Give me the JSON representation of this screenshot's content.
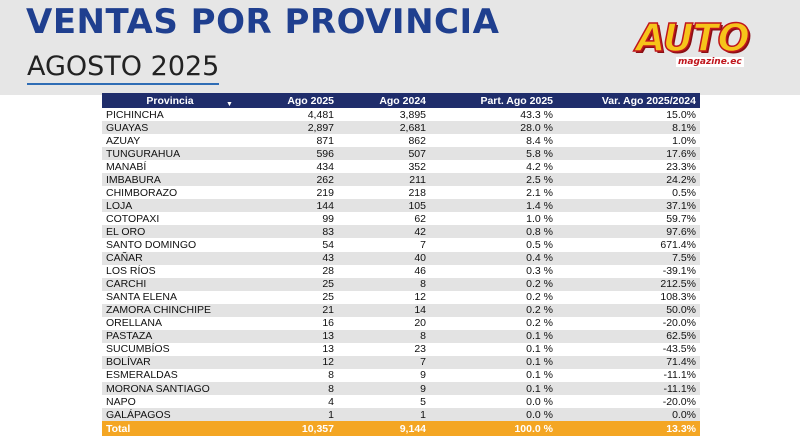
{
  "header": {
    "title": "VENTAS POR PROVINCIA",
    "subtitle": "AGOSTO 2025"
  },
  "logo": {
    "main": "AUTO",
    "sub": "magazine.ec"
  },
  "table": {
    "columns": [
      "Provincia",
      "Ago 2025",
      "Ago 2024",
      "Part. Ago 2025",
      "Var. Ago 2025/2024"
    ],
    "rows": [
      [
        "PICHINCHA",
        "4,481",
        "3,895",
        "43.3 %",
        "15.0%"
      ],
      [
        "GUAYAS",
        "2,897",
        "2,681",
        "28.0 %",
        "8.1%"
      ],
      [
        "AZUAY",
        "871",
        "862",
        "8.4 %",
        "1.0%"
      ],
      [
        "TUNGURAHUA",
        "596",
        "507",
        "5.8 %",
        "17.6%"
      ],
      [
        "MANABÍ",
        "434",
        "352",
        "4.2 %",
        "23.3%"
      ],
      [
        "IMBABURA",
        "262",
        "211",
        "2.5 %",
        "24.2%"
      ],
      [
        "CHIMBORAZO",
        "219",
        "218",
        "2.1 %",
        "0.5%"
      ],
      [
        "LOJA",
        "144",
        "105",
        "1.4 %",
        "37.1%"
      ],
      [
        "COTOPAXI",
        "99",
        "62",
        "1.0 %",
        "59.7%"
      ],
      [
        "EL ORO",
        "83",
        "42",
        "0.8 %",
        "97.6%"
      ],
      [
        "SANTO DOMINGO",
        "54",
        "7",
        "0.5 %",
        "671.4%"
      ],
      [
        "CAÑAR",
        "43",
        "40",
        "0.4 %",
        "7.5%"
      ],
      [
        "LOS RÍOS",
        "28",
        "46",
        "0.3 %",
        "-39.1%"
      ],
      [
        "CARCHI",
        "25",
        "8",
        "0.2 %",
        "212.5%"
      ],
      [
        "SANTA ELENA",
        "25",
        "12",
        "0.2 %",
        "108.3%"
      ],
      [
        "ZAMORA CHINCHIPE",
        "21",
        "14",
        "0.2 %",
        "50.0%"
      ],
      [
        "ORELLANA",
        "16",
        "20",
        "0.2 %",
        "-20.0%"
      ],
      [
        "PASTAZA",
        "13",
        "8",
        "0.1 %",
        "62.5%"
      ],
      [
        "SUCUMBÍOS",
        "13",
        "23",
        "0.1 %",
        "-43.5%"
      ],
      [
        "BOLÍVAR",
        "12",
        "7",
        "0.1 %",
        "71.4%"
      ],
      [
        "ESMERALDAS",
        "8",
        "9",
        "0.1 %",
        "-11.1%"
      ],
      [
        "MORONA SANTIAGO",
        "8",
        "9",
        "0.1 %",
        "-11.1%"
      ],
      [
        "NAPO",
        "4",
        "5",
        "0.0 %",
        "-20.0%"
      ],
      [
        "GALÁPAGOS",
        "1",
        "1",
        "0.0 %",
        "0.0%"
      ]
    ],
    "total": [
      "Total",
      "10,357",
      "9,144",
      "100.0 %",
      "13.3%"
    ]
  },
  "colors": {
    "title": "#1f3f8f",
    "header_row": "#1f2d6b",
    "total_row": "#f4a623",
    "stripe": "#e3e3e3"
  }
}
